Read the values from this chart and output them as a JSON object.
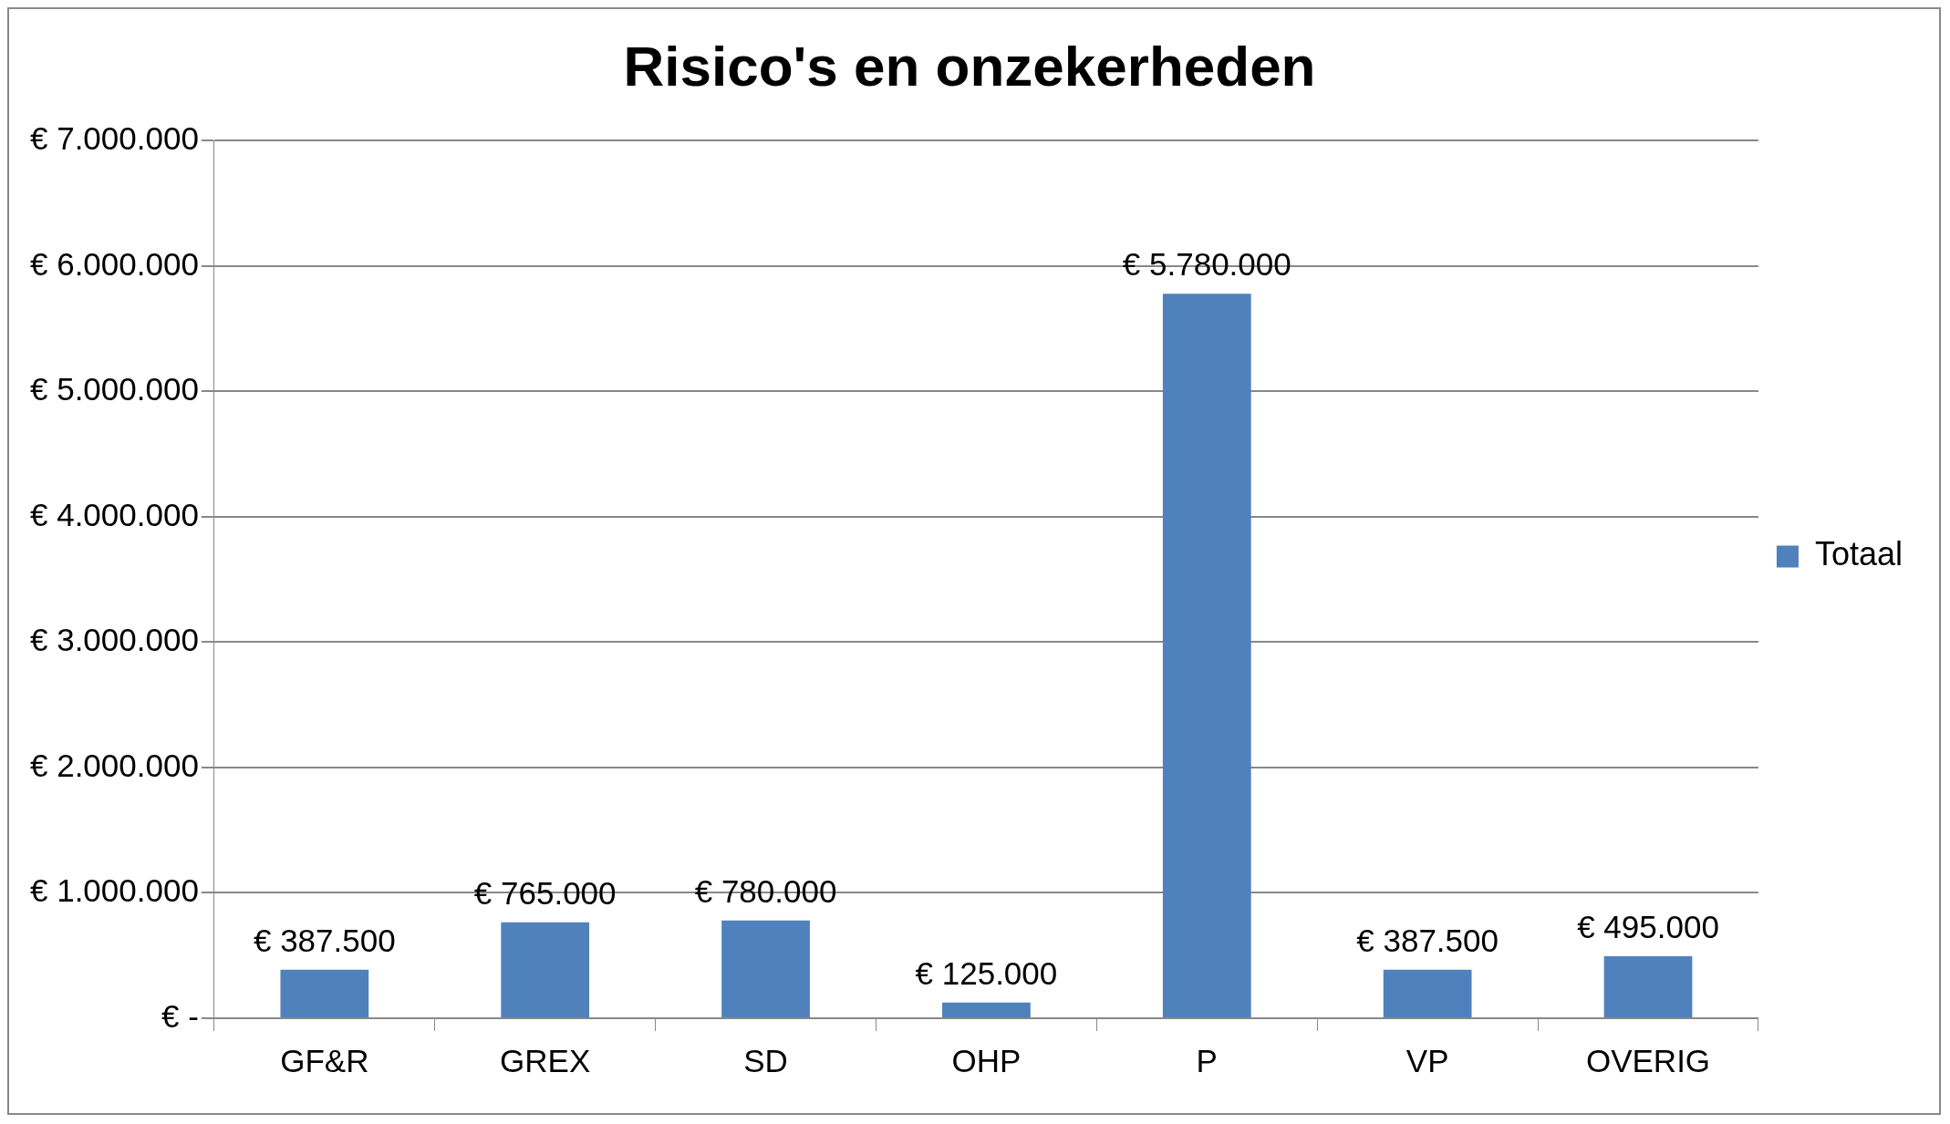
{
  "chart_data": {
    "type": "bar",
    "title": "Risico's en onzekerheden",
    "categories": [
      "GF&R",
      "GREX",
      "SD",
      "OHP",
      "P",
      "VP",
      "OVERIG"
    ],
    "series": [
      {
        "name": "Totaal",
        "color": "#4f81bd",
        "values": [
          387500,
          765000,
          780000,
          125000,
          5780000,
          387500,
          495000
        ],
        "value_labels": [
          "€ 387.500",
          "€ 765.000",
          "€ 780.000",
          "€ 125.000",
          "€ 5.780.000",
          "€ 387.500",
          "€ 495.000"
        ]
      }
    ],
    "ylim": [
      0,
      7000000
    ],
    "yticks": [
      {
        "value": 0,
        "label": "€ -"
      },
      {
        "value": 1000000,
        "label": "€ 1.000.000"
      },
      {
        "value": 2000000,
        "label": "€ 2.000.000"
      },
      {
        "value": 3000000,
        "label": "€ 3.000.000"
      },
      {
        "value": 4000000,
        "label": "€ 4.000.000"
      },
      {
        "value": 5000000,
        "label": "€ 5.000.000"
      },
      {
        "value": 6000000,
        "label": "€ 6.000.000"
      },
      {
        "value": 7000000,
        "label": "€ 7.000.000"
      }
    ],
    "grid": "y",
    "legend": "right"
  }
}
